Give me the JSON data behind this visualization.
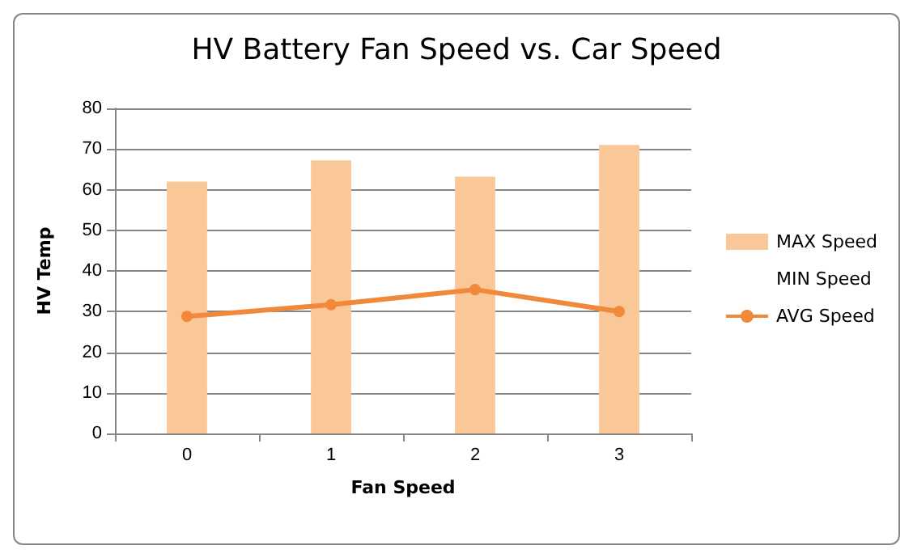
{
  "chart_data": {
    "type": "bar",
    "title": "HV Battery Fan Speed vs. Car Speed",
    "xlabel": "Fan Speed",
    "ylabel": "HV Temp",
    "categories": [
      "0",
      "1",
      "2",
      "3"
    ],
    "series": [
      {
        "name": "MAX Speed",
        "color": "#fac898",
        "values": [
          62,
          67.2,
          63.2,
          71
        ]
      },
      {
        "name": "MIN Speed",
        "values": [
          null,
          null,
          null,
          null
        ]
      },
      {
        "name": "AVG Speed",
        "type": "line",
        "color": "#f0893a",
        "values": [
          28.8,
          31.7,
          35.4,
          30.0
        ],
        "marker": "circle"
      }
    ],
    "ylim": [
      0,
      80
    ],
    "yticks": [
      0,
      10,
      20,
      30,
      40,
      50,
      60,
      70,
      80
    ],
    "grid": "y",
    "legend": "right"
  }
}
